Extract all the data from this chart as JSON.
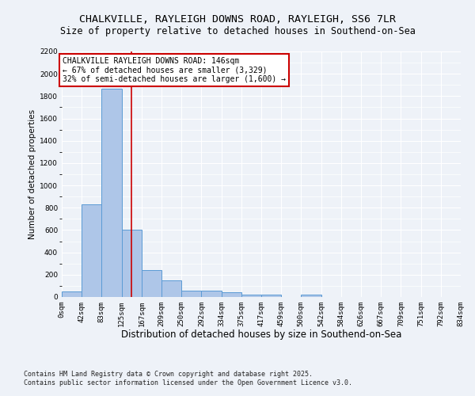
{
  "title": "CHALKVILLE, RAYLEIGH DOWNS ROAD, RAYLEIGH, SS6 7LR",
  "subtitle": "Size of property relative to detached houses in Southend-on-Sea",
  "xlabel": "Distribution of detached houses by size in Southend-on-Sea",
  "ylabel": "Number of detached properties",
  "footer_line1": "Contains HM Land Registry data © Crown copyright and database right 2025.",
  "footer_line2": "Contains public sector information licensed under the Open Government Licence v3.0.",
  "annotation_line1": "CHALKVILLE RAYLEIGH DOWNS ROAD: 146sqm",
  "annotation_line2": "← 67% of detached houses are smaller (3,329)",
  "annotation_line3": "32% of semi-detached houses are larger (1,600) →",
  "property_size": 146,
  "bin_edges": [
    0,
    42,
    83,
    125,
    167,
    209,
    250,
    292,
    334,
    375,
    417,
    459,
    500,
    542,
    584,
    626,
    667,
    709,
    751,
    792,
    834
  ],
  "bar_values": [
    50,
    830,
    1870,
    600,
    240,
    150,
    60,
    55,
    40,
    20,
    20,
    0,
    20,
    0,
    0,
    0,
    0,
    0,
    0,
    0
  ],
  "bar_facecolor": "#aec6e8",
  "bar_edgecolor": "#5b9bd5",
  "vline_color": "#cc0000",
  "annotation_box_edgecolor": "#cc0000",
  "annotation_box_facecolor": "#ffffff",
  "background_color": "#eef2f8",
  "grid_color": "#ffffff",
  "ylim": [
    0,
    2200
  ],
  "yticks": [
    0,
    200,
    400,
    600,
    800,
    1000,
    1200,
    1400,
    1600,
    1800,
    2000,
    2200
  ],
  "title_fontsize": 9.5,
  "subtitle_fontsize": 8.5,
  "xlabel_fontsize": 8.5,
  "ylabel_fontsize": 7.5,
  "tick_fontsize": 6.5,
  "annotation_fontsize": 7,
  "footer_fontsize": 6
}
